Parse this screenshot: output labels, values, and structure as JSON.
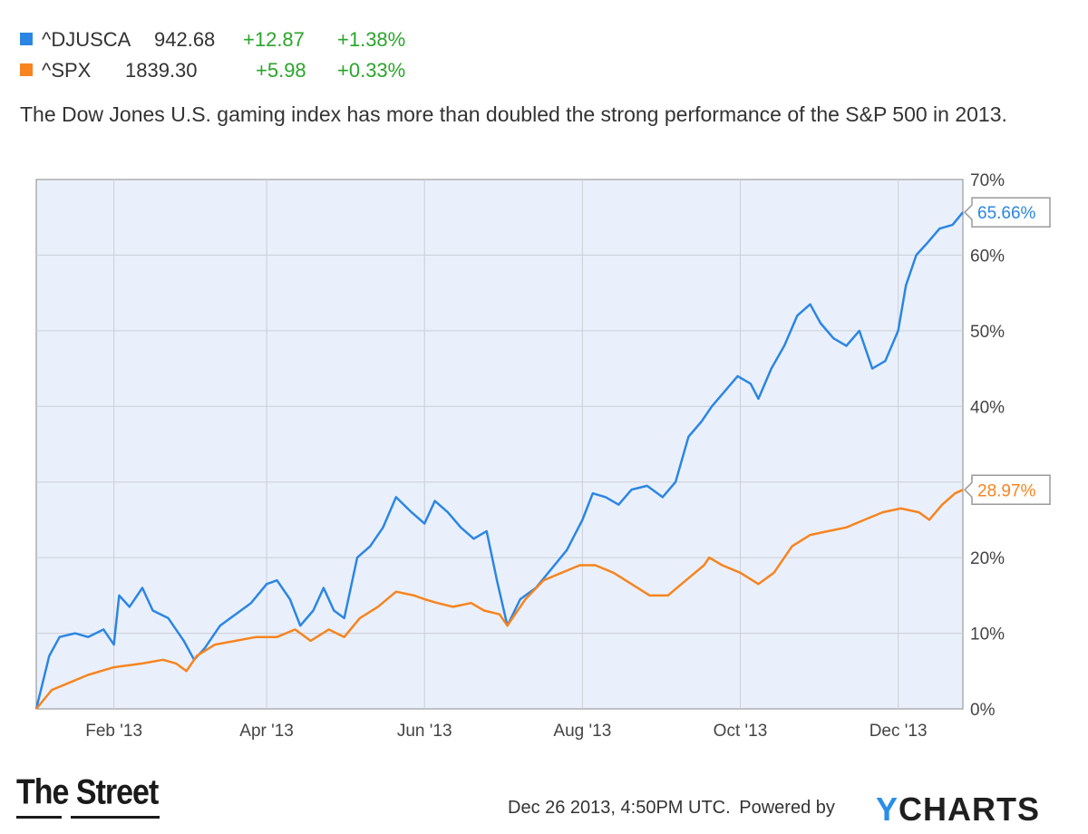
{
  "legend": [
    {
      "name": "^DJUSCA",
      "value": "942.68",
      "change": "+12.87",
      "pct": "+1.38%",
      "color": "#2b86e3"
    },
    {
      "name": "^SPX",
      "value": "1839.30",
      "change": "+5.98",
      "pct": "+0.33%",
      "color": "#f7841f"
    }
  ],
  "change_color": "#2aa52a",
  "subtitle": "The Dow Jones U.S. gaming index has more than doubled the strong performance of the S&P 500 in 2013.",
  "footer": {
    "date": "Dec 26 2013, 4:50PM UTC.",
    "powered_by": "Powered by",
    "brand": "CHARTS",
    "brand_y": "Y"
  },
  "logo": "The Street",
  "chart_data": {
    "type": "line",
    "xlim": [
      "2013-01-02",
      "2013-12-26"
    ],
    "x_ticks": [
      "2013-02-01",
      "2013-04-01",
      "2013-06-01",
      "2013-08-01",
      "2013-10-01",
      "2013-12-01"
    ],
    "x_tick_labels": [
      "Feb '13",
      "Apr '13",
      "Jun '13",
      "Aug '13",
      "Oct '13",
      "Dec '13"
    ],
    "ylim": [
      0,
      70
    ],
    "y_ticks": [
      0,
      10,
      20,
      30,
      40,
      50,
      60,
      70
    ],
    "y_tick_labels": [
      "0%",
      "10%",
      "20%",
      "30%",
      "40%",
      "50%",
      "60%",
      "70%"
    ],
    "grid": true,
    "plot_background": "#eaf0fb",
    "series": [
      {
        "name": "^DJUSCA",
        "color": "#2b86e3",
        "end_label": "65.66%",
        "points": [
          [
            "2013-01-02",
            0
          ],
          [
            "2013-01-07",
            7
          ],
          [
            "2013-01-11",
            9.5
          ],
          [
            "2013-01-17",
            10
          ],
          [
            "2013-01-22",
            9.5
          ],
          [
            "2013-01-28",
            10.5
          ],
          [
            "2013-02-01",
            8.5
          ],
          [
            "2013-02-03",
            15
          ],
          [
            "2013-02-07",
            13.5
          ],
          [
            "2013-02-12",
            16
          ],
          [
            "2013-02-16",
            13
          ],
          [
            "2013-02-22",
            12
          ],
          [
            "2013-02-28",
            9
          ],
          [
            "2013-03-04",
            6.5
          ],
          [
            "2013-03-08",
            8
          ],
          [
            "2013-03-14",
            11
          ],
          [
            "2013-03-20",
            12.5
          ],
          [
            "2013-03-26",
            14
          ],
          [
            "2013-04-01",
            16.5
          ],
          [
            "2013-04-05",
            17
          ],
          [
            "2013-04-10",
            14.5
          ],
          [
            "2013-04-14",
            11
          ],
          [
            "2013-04-19",
            13
          ],
          [
            "2013-04-23",
            16
          ],
          [
            "2013-04-27",
            13
          ],
          [
            "2013-05-01",
            12
          ],
          [
            "2013-05-06",
            20
          ],
          [
            "2013-05-11",
            21.5
          ],
          [
            "2013-05-16",
            24
          ],
          [
            "2013-05-21",
            28
          ],
          [
            "2013-05-27",
            26
          ],
          [
            "2013-06-01",
            24.5
          ],
          [
            "2013-06-05",
            27.5
          ],
          [
            "2013-06-10",
            26
          ],
          [
            "2013-06-15",
            24
          ],
          [
            "2013-06-20",
            22.5
          ],
          [
            "2013-06-25",
            23.5
          ],
          [
            "2013-06-29",
            17
          ],
          [
            "2013-07-03",
            11
          ],
          [
            "2013-07-08",
            14.5
          ],
          [
            "2013-07-14",
            16
          ],
          [
            "2013-07-20",
            18.5
          ],
          [
            "2013-07-26",
            21
          ],
          [
            "2013-08-01",
            25
          ],
          [
            "2013-08-05",
            28.5
          ],
          [
            "2013-08-10",
            28
          ],
          [
            "2013-08-15",
            27
          ],
          [
            "2013-08-20",
            29
          ],
          [
            "2013-08-26",
            29.5
          ],
          [
            "2013-09-01",
            28
          ],
          [
            "2013-09-06",
            30
          ],
          [
            "2013-09-11",
            36
          ],
          [
            "2013-09-16",
            38
          ],
          [
            "2013-09-20",
            40
          ],
          [
            "2013-09-25",
            42
          ],
          [
            "2013-09-30",
            44
          ],
          [
            "2013-10-05",
            43
          ],
          [
            "2013-10-08",
            41
          ],
          [
            "2013-10-13",
            45
          ],
          [
            "2013-10-18",
            48
          ],
          [
            "2013-10-23",
            52
          ],
          [
            "2013-10-28",
            53.5
          ],
          [
            "2013-11-01",
            51
          ],
          [
            "2013-11-06",
            49
          ],
          [
            "2013-11-11",
            48
          ],
          [
            "2013-11-16",
            50
          ],
          [
            "2013-11-21",
            45
          ],
          [
            "2013-11-26",
            46
          ],
          [
            "2013-12-01",
            50
          ],
          [
            "2013-12-04",
            56
          ],
          [
            "2013-12-08",
            60
          ],
          [
            "2013-12-12",
            61.5
          ],
          [
            "2013-12-17",
            63.5
          ],
          [
            "2013-12-22",
            64
          ],
          [
            "2013-12-26",
            65.66
          ]
        ]
      },
      {
        "name": "^SPX",
        "color": "#f7841f",
        "end_label": "28.97%",
        "points": [
          [
            "2013-01-02",
            0
          ],
          [
            "2013-01-08",
            2.5
          ],
          [
            "2013-01-15",
            3.5
          ],
          [
            "2013-01-22",
            4.5
          ],
          [
            "2013-02-01",
            5.5
          ],
          [
            "2013-02-12",
            6
          ],
          [
            "2013-02-20",
            6.5
          ],
          [
            "2013-02-25",
            6
          ],
          [
            "2013-03-01",
            5
          ],
          [
            "2013-03-05",
            7
          ],
          [
            "2013-03-12",
            8.5
          ],
          [
            "2013-03-20",
            9
          ],
          [
            "2013-03-28",
            9.5
          ],
          [
            "2013-04-05",
            9.5
          ],
          [
            "2013-04-12",
            10.5
          ],
          [
            "2013-04-18",
            9
          ],
          [
            "2013-04-25",
            10.5
          ],
          [
            "2013-05-01",
            9.5
          ],
          [
            "2013-05-07",
            12
          ],
          [
            "2013-05-14",
            13.5
          ],
          [
            "2013-05-21",
            15.5
          ],
          [
            "2013-05-28",
            15
          ],
          [
            "2013-06-01",
            14.5
          ],
          [
            "2013-06-06",
            14
          ],
          [
            "2013-06-12",
            13.5
          ],
          [
            "2013-06-19",
            14
          ],
          [
            "2013-06-24",
            13
          ],
          [
            "2013-06-30",
            12.5
          ],
          [
            "2013-07-03",
            11
          ],
          [
            "2013-07-10",
            14.5
          ],
          [
            "2013-07-17",
            17
          ],
          [
            "2013-07-24",
            18
          ],
          [
            "2013-07-31",
            19
          ],
          [
            "2013-08-06",
            19
          ],
          [
            "2013-08-13",
            18
          ],
          [
            "2013-08-20",
            16.5
          ],
          [
            "2013-08-27",
            15
          ],
          [
            "2013-09-03",
            15
          ],
          [
            "2013-09-10",
            17
          ],
          [
            "2013-09-17",
            19
          ],
          [
            "2013-09-19",
            20
          ],
          [
            "2013-09-24",
            19
          ],
          [
            "2013-10-01",
            18
          ],
          [
            "2013-10-08",
            16.5
          ],
          [
            "2013-10-14",
            18
          ],
          [
            "2013-10-21",
            21.5
          ],
          [
            "2013-10-28",
            23
          ],
          [
            "2013-11-04",
            23.5
          ],
          [
            "2013-11-11",
            24
          ],
          [
            "2013-11-18",
            25
          ],
          [
            "2013-11-25",
            26
          ],
          [
            "2013-12-02",
            26.5
          ],
          [
            "2013-12-09",
            26
          ],
          [
            "2013-12-13",
            25
          ],
          [
            "2013-12-18",
            27
          ],
          [
            "2013-12-23",
            28.5
          ],
          [
            "2013-12-26",
            28.97
          ]
        ]
      }
    ]
  }
}
